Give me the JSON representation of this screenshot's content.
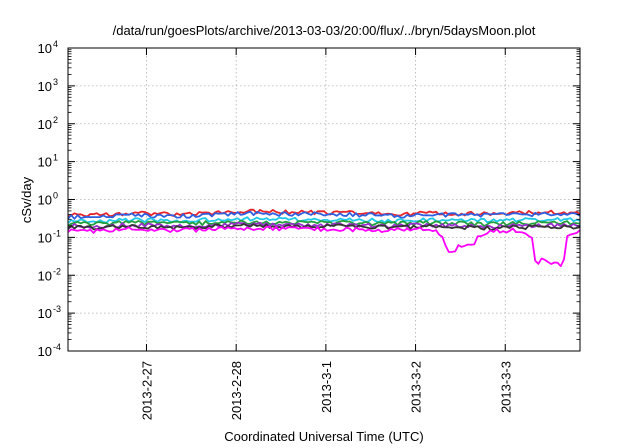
{
  "chart_data": {
    "type": "line",
    "title": "/data/run/goesPlots/archive/2013-03-03/20:00/flux/../bryn/5daysMoon.plot",
    "xlabel": "Coordinated Universal Time (UTC)",
    "ylabel": "cSv/day",
    "yscale": "log",
    "ylim": [
      0.0001,
      10000
    ],
    "yticks": [
      {
        "base": "10",
        "exp": "4"
      },
      {
        "base": "10",
        "exp": "3"
      },
      {
        "base": "10",
        "exp": "2"
      },
      {
        "base": "10",
        "exp": "1"
      },
      {
        "base": "10",
        "exp": "0"
      },
      {
        "base": "10",
        "exp": "-1"
      },
      {
        "base": "10",
        "exp": "-2"
      },
      {
        "base": "10",
        "exp": "-3"
      },
      {
        "base": "10",
        "exp": "-4"
      }
    ],
    "xlim": [
      "2013-02-26 03:00",
      "2013-03-03 20:00"
    ],
    "xticks": [
      {
        "date": "2013-02-27 00:00",
        "label": "2013-2-27"
      },
      {
        "date": "2013-02-28 00:00",
        "label": "2013-2-28"
      },
      {
        "date": "2013-03-01 00:00",
        "label": "2013-3-1"
      },
      {
        "date": "2013-03-02 00:00",
        "label": "2013-3-2"
      },
      {
        "date": "2013-03-03 00:00",
        "label": "2013-3-3"
      }
    ],
    "grid": true,
    "series": [
      {
        "color": "#e8232a",
        "values": [
          0.42,
          0.4,
          0.45,
          0.43,
          0.41,
          0.46,
          0.5,
          0.48,
          0.47,
          0.46,
          0.44,
          0.42,
          0.45,
          0.44,
          0.43,
          0.45,
          0.47,
          0.44
        ]
      },
      {
        "color": "#2e5fe0",
        "values": [
          0.36,
          0.34,
          0.4,
          0.38,
          0.37,
          0.41,
          0.44,
          0.42,
          0.43,
          0.42,
          0.4,
          0.38,
          0.41,
          0.4,
          0.39,
          0.41,
          0.42,
          0.4
        ]
      },
      {
        "color": "#1ec8e6",
        "values": [
          0.28,
          0.27,
          0.3,
          0.29,
          0.28,
          0.31,
          0.32,
          0.31,
          0.3,
          0.3,
          0.29,
          0.28,
          0.3,
          0.29,
          0.28,
          0.3,
          0.3,
          0.29
        ]
      },
      {
        "color": "#22a03c",
        "values": [
          0.24,
          0.23,
          0.25,
          0.24,
          0.24,
          0.25,
          0.26,
          0.25,
          0.25,
          0.25,
          0.24,
          0.24,
          0.25,
          0.24,
          0.23,
          0.24,
          0.25,
          0.24
        ]
      },
      {
        "color": "#9a2fd0",
        "values": [
          0.21,
          0.2,
          0.22,
          0.21,
          0.21,
          0.22,
          0.23,
          0.22,
          0.22,
          0.22,
          0.21,
          0.21,
          0.22,
          0.21,
          0.2,
          0.21,
          0.22,
          0.21
        ]
      },
      {
        "color": "#333333",
        "values": [
          0.19,
          0.18,
          0.2,
          0.19,
          0.19,
          0.2,
          0.21,
          0.2,
          0.2,
          0.2,
          0.19,
          0.19,
          0.2,
          0.19,
          0.18,
          0.19,
          0.2,
          0.19
        ]
      },
      {
        "color": "#ff00ff",
        "values": [
          0.16,
          0.15,
          0.17,
          0.16,
          0.16,
          0.17,
          0.18,
          0.17,
          0.17,
          0.17,
          0.16,
          0.16,
          0.17,
          0.05,
          0.15,
          0.16,
          0.02,
          0.16
        ]
      }
    ]
  }
}
